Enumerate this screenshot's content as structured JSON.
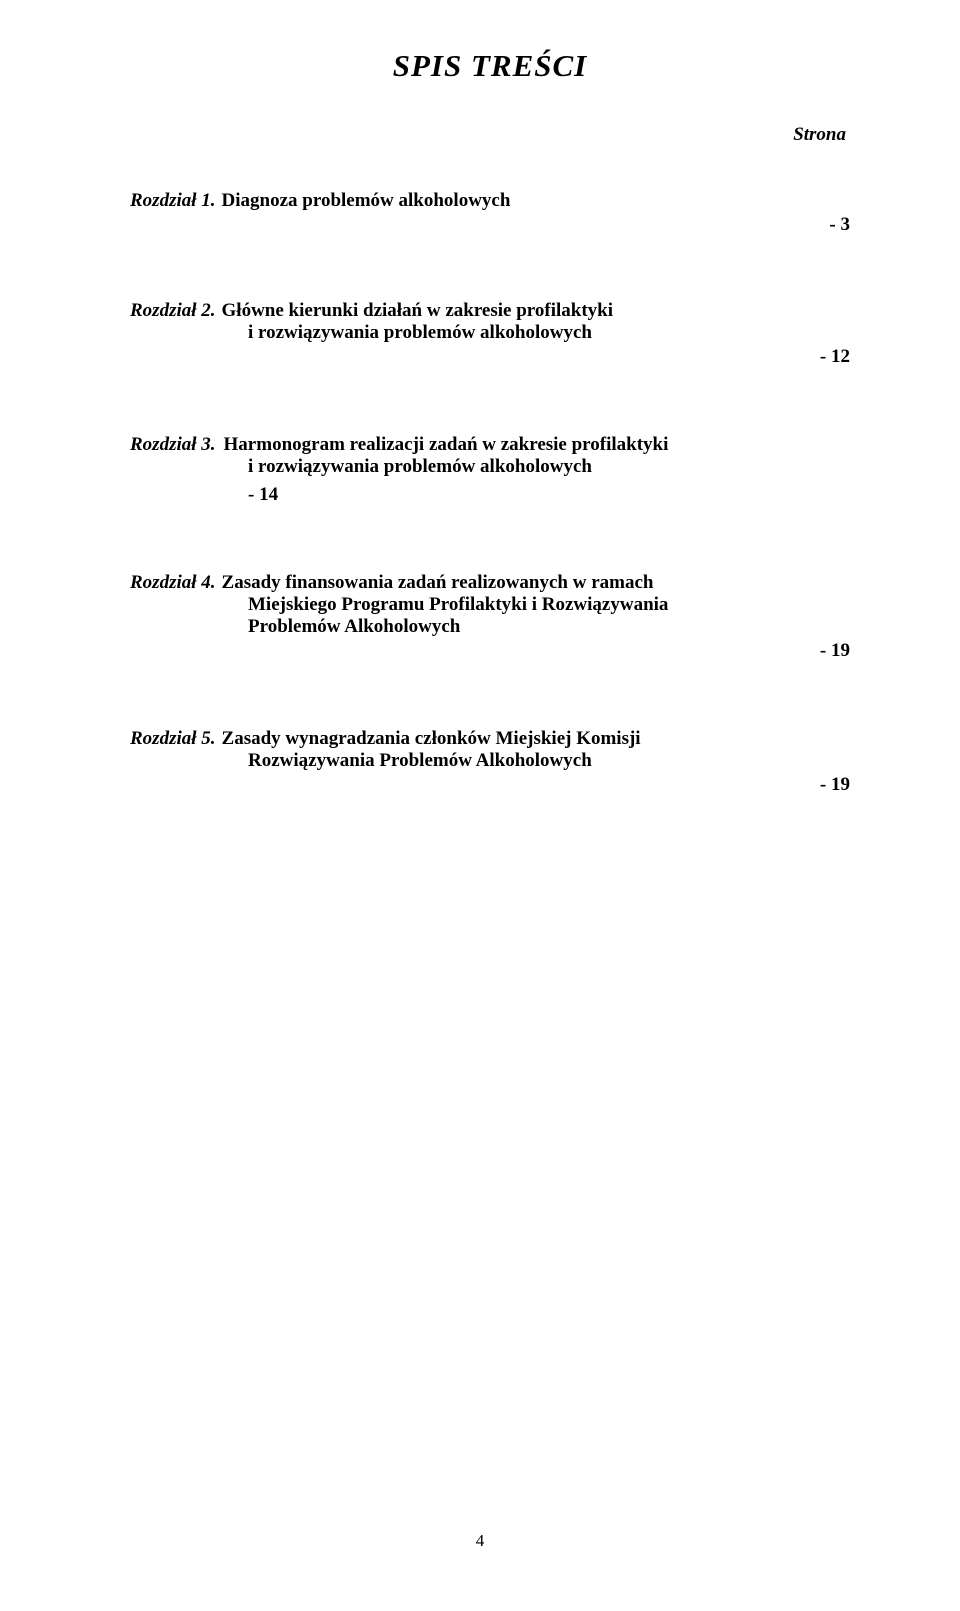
{
  "title": "SPIS   TREŚCI",
  "strona_label": "Strona",
  "chapters": [
    {
      "label": "Rozdział 1.",
      "lines": [
        "Diagnoza problemów alkoholowych"
      ],
      "page": "- 3",
      "page_placement": "right"
    },
    {
      "label": "Rozdział 2.",
      "lines": [
        "Główne kierunki działań w zakresie profilaktyki",
        "i rozwiązywania problemów alkoholowych"
      ],
      "page": "- 12",
      "page_placement": "right"
    },
    {
      "label": "Rozdział 3.",
      "lines": [
        "Harmonogram realizacji zadań w zakresie profilaktyki",
        "i rozwiązywania problemów alkoholowych"
      ],
      "page": "- 14",
      "page_placement": "left-indent"
    },
    {
      "label": "Rozdział 4.",
      "lines": [
        "Zasady finansowania zadań realizowanych w ramach",
        "Miejskiego Programu Profilaktyki i Rozwiązywania",
        "Problemów Alkoholowych"
      ],
      "page": "- 19",
      "page_placement": "right"
    },
    {
      "label": "Rozdział 5.",
      "lines": [
        "Zasady wynagradzania członków Miejskiej Komisji",
        "Rozwiązywania Problemów Alkoholowych"
      ],
      "page": "- 19",
      "page_placement": "right"
    }
  ],
  "page_number": "4",
  "colors": {
    "text": "#000000",
    "background": "#ffffff"
  },
  "fontsizes": {
    "title": 31,
    "body": 19,
    "pagenum": 17
  }
}
